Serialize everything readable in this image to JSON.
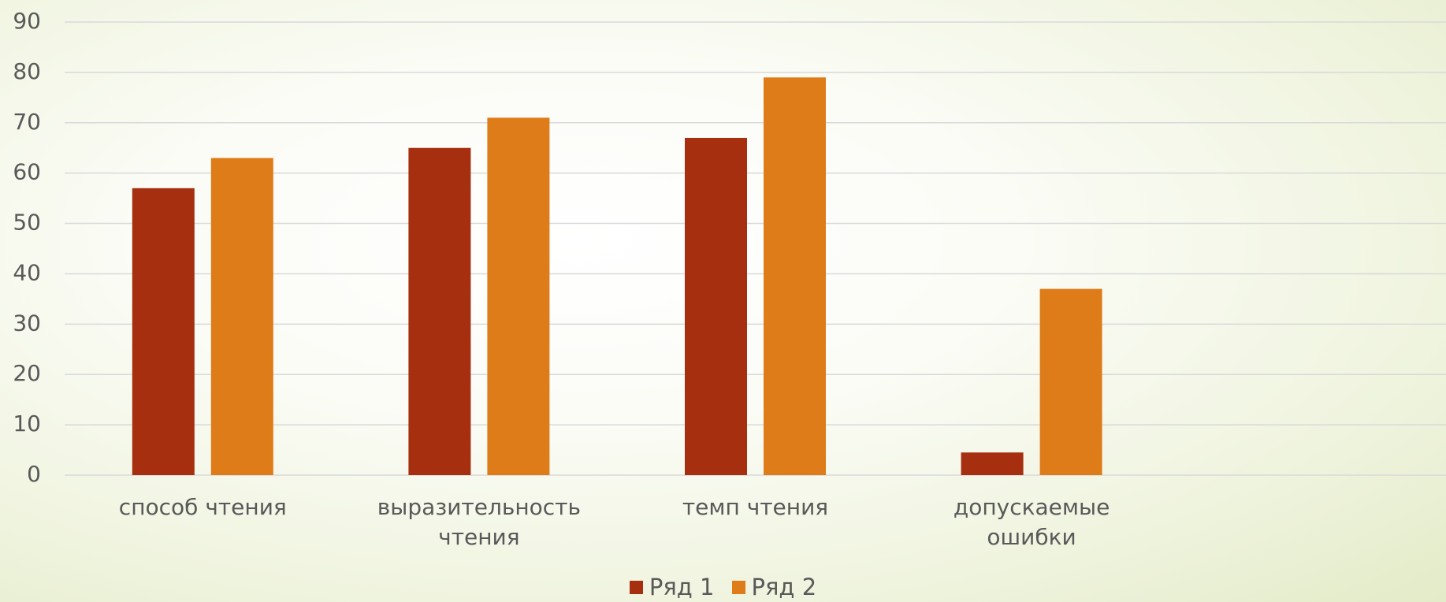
{
  "chart_data": {
    "type": "bar",
    "categories": [
      "способ чтения",
      "выразительность чтения",
      "темп чтения",
      "допускаемые ошибки",
      null
    ],
    "series": [
      {
        "name": "Ряд 1",
        "color": "#a62f10",
        "values": [
          57,
          65,
          67,
          4.5,
          null
        ]
      },
      {
        "name": "Ряд 2",
        "color": "#df7c1a",
        "values": [
          63,
          71,
          79,
          37,
          null
        ]
      }
    ],
    "ylim": [
      0,
      90
    ],
    "yticks": [
      0,
      10,
      20,
      30,
      40,
      50,
      60,
      70,
      80,
      90
    ],
    "grid": true,
    "legend": "bottom"
  }
}
